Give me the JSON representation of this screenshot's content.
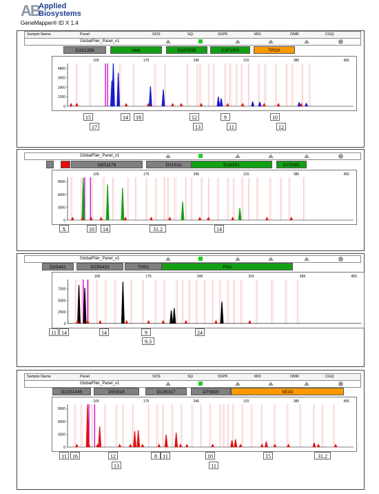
{
  "brand": {
    "logo": "AB",
    "name_line1": "Applied",
    "name_line2": "Biosystems",
    "app_title": "GeneMapper® ID X  1.4"
  },
  "header_cols": {
    "sample_name": "Sample Name",
    "panel": "Panel",
    "sos": "SOS",
    "sq": "SQ",
    "sspk": "SSPK",
    "mix": "MIX",
    "omr": "OMR",
    "cgq": "CGQ"
  },
  "panel_name": "GlobalFiler_Panel_v1",
  "x_ticks": [
    "105",
    "175",
    "245",
    "315",
    "385",
    "455"
  ],
  "colors": {
    "blue": "#1a1acc",
    "green": "#14a014",
    "black": "#000000",
    "red": "#e01010",
    "magenta": "#cc00cc",
    "locus_grey": "#808080",
    "locus_green": "#14a014",
    "locus_orange": "#ff9900"
  },
  "panels": [
    {
      "loci": [
        "D3S1358",
        "vWA",
        "D16S539",
        "CSF1PO",
        "TPOX"
      ],
      "y_ticks": [
        "4800",
        "3600",
        "2400",
        "1200",
        "0"
      ],
      "alleles": [
        "15",
        "17",
        "14",
        "18",
        "12",
        "13",
        "9",
        "11",
        "10",
        "12"
      ]
    },
    {
      "loci": [
        "",
        "",
        "D8S1179",
        "D21S11",
        "D18S51",
        "DYS391"
      ],
      "y_ticks": [
        "9000",
        "6000",
        "3000",
        "0"
      ],
      "alleles": [
        "X",
        "10",
        "14",
        "31.2",
        "14"
      ]
    },
    {
      "loci": [
        "D2S441",
        "D19S433",
        "TH01",
        "FGA"
      ],
      "y_ticks": [
        "7500",
        "5000",
        "2500",
        "0"
      ],
      "alleles": [
        "11",
        "14",
        "14",
        "9",
        "9.3",
        "24"
      ]
    },
    {
      "loci": [
        "D22S1045",
        "D5S818",
        "D13S317",
        "D7S820",
        "SE33"
      ],
      "y_ticks": [
        "9000",
        "6000",
        "3000",
        "0"
      ],
      "alleles": [
        "11",
        "16",
        "12",
        "13",
        "8",
        "11",
        "10",
        "11",
        "15",
        "31.2"
      ]
    }
  ],
  "chart_data": [
    {
      "type": "line",
      "dye": "blue",
      "xlim": [
        65,
        465
      ],
      "ylim": [
        0,
        5400
      ],
      "series": [
        {
          "values": [
            [
              127,
              3200
            ],
            [
              129,
              5400
            ],
            [
              136,
              4200
            ],
            [
              181,
              2500
            ],
            [
              199,
              2100
            ],
            [
              276,
              1200
            ],
            [
              280,
              1000
            ],
            [
              324,
              600
            ],
            [
              334,
              550
            ],
            [
              389,
              500
            ],
            [
              399,
              400
            ]
          ]
        }
      ]
    },
    {
      "type": "line",
      "dye": "green",
      "xlim": [
        65,
        465
      ],
      "ylim": [
        0,
        10000
      ],
      "series": [
        {
          "values": [
            [
              87,
              9800
            ],
            [
              121,
              8300
            ],
            [
              142,
              7500
            ],
            [
              226,
              4300
            ],
            [
              306,
              2800
            ]
          ]
        }
      ]
    },
    {
      "type": "line",
      "dye": "black",
      "xlim": [
        65,
        465
      ],
      "ylim": [
        0,
        9500
      ],
      "series": [
        {
          "values": [
            [
              80,
              8300
            ],
            [
              88,
              7700
            ],
            [
              140,
              9000
            ],
            [
              206,
              2800
            ],
            [
              210,
              3300
            ],
            [
              275,
              4700
            ]
          ]
        }
      ]
    },
    {
      "type": "line",
      "dye": "red",
      "xlim": [
        65,
        465
      ],
      "ylim": [
        0,
        10000
      ],
      "series": [
        {
          "values": [
            [
              93,
              10000
            ],
            [
              110,
              4800
            ],
            [
              159,
              3700
            ],
            [
              164,
              3900
            ],
            [
              203,
              2900
            ],
            [
              217,
              3300
            ],
            [
              295,
              1600
            ],
            [
              300,
              1800
            ],
            [
              343,
              1300
            ],
            [
              410,
              1000
            ]
          ]
        }
      ]
    }
  ]
}
